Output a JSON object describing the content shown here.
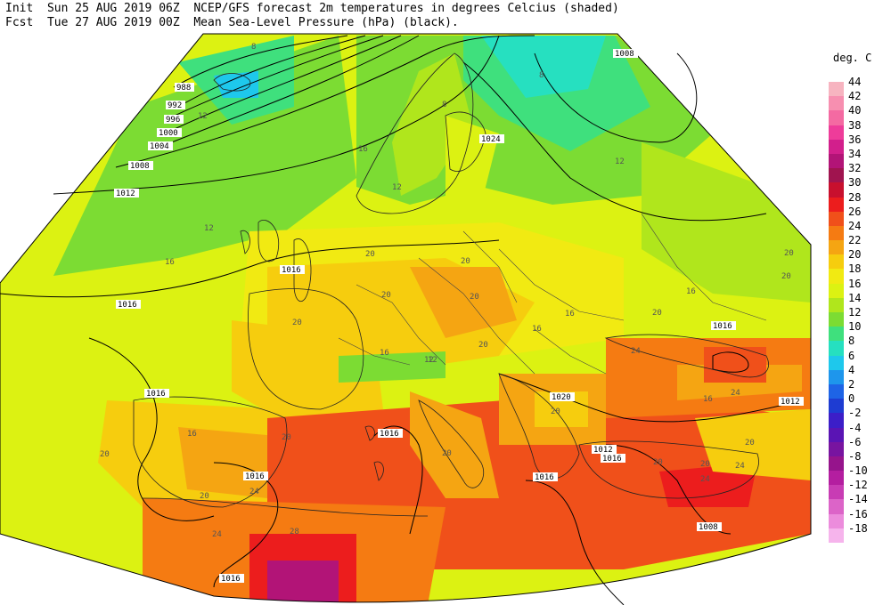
{
  "header": {
    "init_prefix": "Init",
    "init_time": "Sun 25 AUG 2019 06Z",
    "fcst_prefix": "Fcst",
    "fcst_time": "Tue 27 AUG 2019 00Z",
    "title_line1": "NCEP/GFS forecast 2m temperatures in degrees Celcius (shaded)",
    "title_line2": "Mean Sea-Level Pressure (hPa) (black)."
  },
  "legend": {
    "title": "deg. C",
    "entries": [
      {
        "label": "44",
        "color": "#f7b4c0"
      },
      {
        "label": "42",
        "color": "#f78fb0"
      },
      {
        "label": "40",
        "color": "#f46aa2"
      },
      {
        "label": "38",
        "color": "#ee3c9a"
      },
      {
        "label": "36",
        "color": "#d21f8c"
      },
      {
        "label": "34",
        "color": "#b21477"
      },
      {
        "label": "32",
        "color": "#a0144f"
      },
      {
        "label": "30",
        "color": "#c8102e"
      },
      {
        "label": "28",
        "color": "#ec1d1d"
      },
      {
        "label": "26",
        "color": "#f0501a"
      },
      {
        "label": "24",
        "color": "#f57b12"
      },
      {
        "label": "22",
        "color": "#f5a512"
      },
      {
        "label": "20",
        "color": "#f6cd0e"
      },
      {
        "label": "18",
        "color": "#f1ea12"
      },
      {
        "label": "16",
        "color": "#dcf212"
      },
      {
        "label": "14",
        "color": "#b0e61c"
      },
      {
        "label": "12",
        "color": "#7cdc33"
      },
      {
        "label": "10",
        "color": "#3fe07d"
      },
      {
        "label": "8",
        "color": "#26e0c0"
      },
      {
        "label": "6",
        "color": "#1ec8ec"
      },
      {
        "label": "4",
        "color": "#1e96ec"
      },
      {
        "label": "2",
        "color": "#1e64e6"
      },
      {
        "label": "0",
        "color": "#1e3cd2"
      },
      {
        "label": "-2",
        "color": "#3c1ec8"
      },
      {
        "label": "-4",
        "color": "#5a14b4"
      },
      {
        "label": "-6",
        "color": "#7814a0"
      },
      {
        "label": "-8",
        "color": "#96148c"
      },
      {
        "label": "-10",
        "color": "#b41ea0"
      },
      {
        "label": "-12",
        "color": "#c83cb4"
      },
      {
        "label": "-14",
        "color": "#dc64c8"
      },
      {
        "label": "-16",
        "color": "#ec8cdc"
      },
      {
        "label": "-18",
        "color": "#f6b4ec"
      }
    ]
  },
  "isobar_labels": [
    "988",
    "992",
    "996",
    "1000",
    "1004",
    "1008",
    "1012",
    "1016",
    "1016",
    "1016",
    "1016",
    "1016",
    "1016",
    "1016",
    "1016",
    "1016",
    "1020",
    "1024",
    "1008",
    "1008",
    "1012",
    "1012"
  ],
  "temperature_labels": [
    "8",
    "12",
    "16",
    "16",
    "12",
    "12",
    "20",
    "20",
    "20",
    "16",
    "20",
    "20",
    "16",
    "12",
    "20",
    "20",
    "24",
    "20",
    "24",
    "24",
    "20",
    "20",
    "16",
    "24",
    "28",
    "20",
    "20",
    "24",
    "12",
    "16",
    "20",
    "8",
    "8",
    "12",
    "16",
    "20",
    "20",
    "16",
    "20",
    "24",
    "20"
  ],
  "map_region": "Europe / North Africa"
}
